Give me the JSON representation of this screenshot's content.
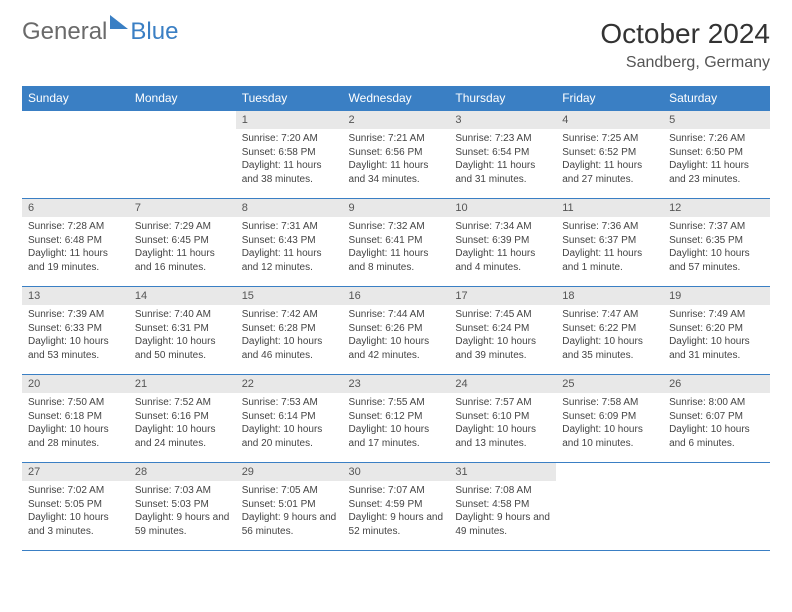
{
  "logo": {
    "part1": "General",
    "part2": "Blue"
  },
  "title": "October 2024",
  "location": "Sandberg, Germany",
  "colors": {
    "header_bg": "#3a7fc4",
    "header_text": "#ffffff",
    "daynum_bg": "#e8e8e8",
    "text": "#444444",
    "border": "#3a7fc4"
  },
  "day_names": [
    "Sunday",
    "Monday",
    "Tuesday",
    "Wednesday",
    "Thursday",
    "Friday",
    "Saturday"
  ],
  "weeks": [
    [
      null,
      null,
      {
        "n": "1",
        "sr": "Sunrise: 7:20 AM",
        "ss": "Sunset: 6:58 PM",
        "dl": "Daylight: 11 hours and 38 minutes."
      },
      {
        "n": "2",
        "sr": "Sunrise: 7:21 AM",
        "ss": "Sunset: 6:56 PM",
        "dl": "Daylight: 11 hours and 34 minutes."
      },
      {
        "n": "3",
        "sr": "Sunrise: 7:23 AM",
        "ss": "Sunset: 6:54 PM",
        "dl": "Daylight: 11 hours and 31 minutes."
      },
      {
        "n": "4",
        "sr": "Sunrise: 7:25 AM",
        "ss": "Sunset: 6:52 PM",
        "dl": "Daylight: 11 hours and 27 minutes."
      },
      {
        "n": "5",
        "sr": "Sunrise: 7:26 AM",
        "ss": "Sunset: 6:50 PM",
        "dl": "Daylight: 11 hours and 23 minutes."
      }
    ],
    [
      {
        "n": "6",
        "sr": "Sunrise: 7:28 AM",
        "ss": "Sunset: 6:48 PM",
        "dl": "Daylight: 11 hours and 19 minutes."
      },
      {
        "n": "7",
        "sr": "Sunrise: 7:29 AM",
        "ss": "Sunset: 6:45 PM",
        "dl": "Daylight: 11 hours and 16 minutes."
      },
      {
        "n": "8",
        "sr": "Sunrise: 7:31 AM",
        "ss": "Sunset: 6:43 PM",
        "dl": "Daylight: 11 hours and 12 minutes."
      },
      {
        "n": "9",
        "sr": "Sunrise: 7:32 AM",
        "ss": "Sunset: 6:41 PM",
        "dl": "Daylight: 11 hours and 8 minutes."
      },
      {
        "n": "10",
        "sr": "Sunrise: 7:34 AM",
        "ss": "Sunset: 6:39 PM",
        "dl": "Daylight: 11 hours and 4 minutes."
      },
      {
        "n": "11",
        "sr": "Sunrise: 7:36 AM",
        "ss": "Sunset: 6:37 PM",
        "dl": "Daylight: 11 hours and 1 minute."
      },
      {
        "n": "12",
        "sr": "Sunrise: 7:37 AM",
        "ss": "Sunset: 6:35 PM",
        "dl": "Daylight: 10 hours and 57 minutes."
      }
    ],
    [
      {
        "n": "13",
        "sr": "Sunrise: 7:39 AM",
        "ss": "Sunset: 6:33 PM",
        "dl": "Daylight: 10 hours and 53 minutes."
      },
      {
        "n": "14",
        "sr": "Sunrise: 7:40 AM",
        "ss": "Sunset: 6:31 PM",
        "dl": "Daylight: 10 hours and 50 minutes."
      },
      {
        "n": "15",
        "sr": "Sunrise: 7:42 AM",
        "ss": "Sunset: 6:28 PM",
        "dl": "Daylight: 10 hours and 46 minutes."
      },
      {
        "n": "16",
        "sr": "Sunrise: 7:44 AM",
        "ss": "Sunset: 6:26 PM",
        "dl": "Daylight: 10 hours and 42 minutes."
      },
      {
        "n": "17",
        "sr": "Sunrise: 7:45 AM",
        "ss": "Sunset: 6:24 PM",
        "dl": "Daylight: 10 hours and 39 minutes."
      },
      {
        "n": "18",
        "sr": "Sunrise: 7:47 AM",
        "ss": "Sunset: 6:22 PM",
        "dl": "Daylight: 10 hours and 35 minutes."
      },
      {
        "n": "19",
        "sr": "Sunrise: 7:49 AM",
        "ss": "Sunset: 6:20 PM",
        "dl": "Daylight: 10 hours and 31 minutes."
      }
    ],
    [
      {
        "n": "20",
        "sr": "Sunrise: 7:50 AM",
        "ss": "Sunset: 6:18 PM",
        "dl": "Daylight: 10 hours and 28 minutes."
      },
      {
        "n": "21",
        "sr": "Sunrise: 7:52 AM",
        "ss": "Sunset: 6:16 PM",
        "dl": "Daylight: 10 hours and 24 minutes."
      },
      {
        "n": "22",
        "sr": "Sunrise: 7:53 AM",
        "ss": "Sunset: 6:14 PM",
        "dl": "Daylight: 10 hours and 20 minutes."
      },
      {
        "n": "23",
        "sr": "Sunrise: 7:55 AM",
        "ss": "Sunset: 6:12 PM",
        "dl": "Daylight: 10 hours and 17 minutes."
      },
      {
        "n": "24",
        "sr": "Sunrise: 7:57 AM",
        "ss": "Sunset: 6:10 PM",
        "dl": "Daylight: 10 hours and 13 minutes."
      },
      {
        "n": "25",
        "sr": "Sunrise: 7:58 AM",
        "ss": "Sunset: 6:09 PM",
        "dl": "Daylight: 10 hours and 10 minutes."
      },
      {
        "n": "26",
        "sr": "Sunrise: 8:00 AM",
        "ss": "Sunset: 6:07 PM",
        "dl": "Daylight: 10 hours and 6 minutes."
      }
    ],
    [
      {
        "n": "27",
        "sr": "Sunrise: 7:02 AM",
        "ss": "Sunset: 5:05 PM",
        "dl": "Daylight: 10 hours and 3 minutes."
      },
      {
        "n": "28",
        "sr": "Sunrise: 7:03 AM",
        "ss": "Sunset: 5:03 PM",
        "dl": "Daylight: 9 hours and 59 minutes."
      },
      {
        "n": "29",
        "sr": "Sunrise: 7:05 AM",
        "ss": "Sunset: 5:01 PM",
        "dl": "Daylight: 9 hours and 56 minutes."
      },
      {
        "n": "30",
        "sr": "Sunrise: 7:07 AM",
        "ss": "Sunset: 4:59 PM",
        "dl": "Daylight: 9 hours and 52 minutes."
      },
      {
        "n": "31",
        "sr": "Sunrise: 7:08 AM",
        "ss": "Sunset: 4:58 PM",
        "dl": "Daylight: 9 hours and 49 minutes."
      },
      null,
      null
    ]
  ]
}
